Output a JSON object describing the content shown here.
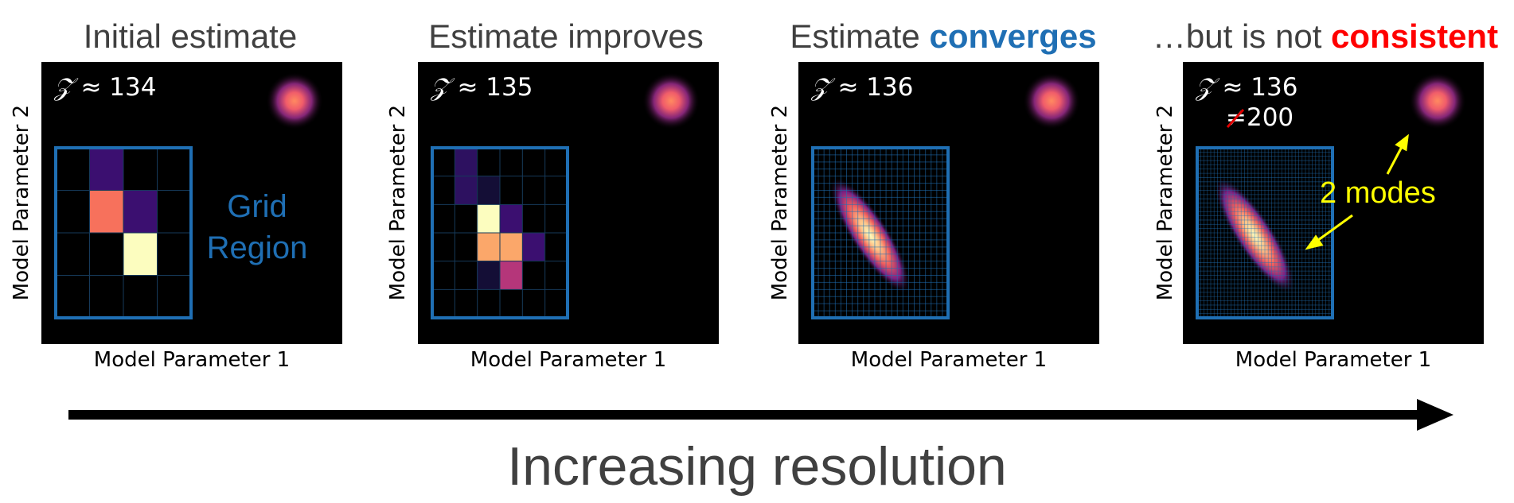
{
  "colors": {
    "grid_blue": "#1f6fb4",
    "title_gray": "#404040",
    "converges_blue": "#1f6fb4",
    "consistent_red": "#ff0000",
    "annotation_yellow": "#ffff00",
    "plot_background": "#000000"
  },
  "x_axis_label": "Model Parameter 1",
  "y_axis_label": "Model Parameter 2",
  "panels": [
    {
      "title_main": "Initial estimate",
      "title_highlight": "",
      "evidence_symbol": "𝒵",
      "evidence_text": "≈ 134",
      "grid_cells": 4
    },
    {
      "title_main": "Estimate improves",
      "title_highlight": "",
      "evidence_symbol": "𝒵",
      "evidence_text": "≈ 135",
      "grid_cells": 6
    },
    {
      "title_main": "Estimate ",
      "title_highlight": "converges",
      "evidence_symbol": "𝒵",
      "evidence_text": "≈ 136",
      "grid_cells": 24
    },
    {
      "title_main": "…but is not ",
      "title_highlight": "consistent",
      "evidence_symbol": "𝒵",
      "evidence_text": "≈ 136",
      "evidence_strike_text": "≠200",
      "grid_cells": 40
    }
  ],
  "annotations": {
    "grid_region_line1": "Grid",
    "grid_region_line2": "Region",
    "modes": "2 modes"
  },
  "caption": "Increasing resolution"
}
